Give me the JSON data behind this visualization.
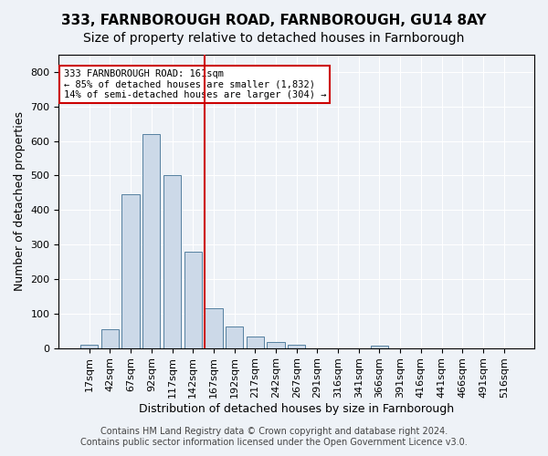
{
  "title1": "333, FARNBOROUGH ROAD, FARNBOROUGH, GU14 8AY",
  "title2": "Size of property relative to detached houses in Farnborough",
  "xlabel": "Distribution of detached houses by size in Farnborough",
  "ylabel": "Number of detached properties",
  "categories": [
    "17sqm",
    "42sqm",
    "67sqm",
    "92sqm",
    "117sqm",
    "142sqm",
    "167sqm",
    "192sqm",
    "217sqm",
    "242sqm",
    "267sqm",
    "291sqm",
    "316sqm",
    "341sqm",
    "366sqm",
    "391sqm",
    "416sqm",
    "441sqm",
    "466sqm",
    "491sqm",
    "516sqm"
  ],
  "values": [
    10,
    55,
    445,
    620,
    500,
    280,
    115,
    62,
    32,
    17,
    9,
    0,
    0,
    0,
    7,
    0,
    0,
    0,
    0,
    0,
    0
  ],
  "bar_color": "#ccd9e8",
  "bar_edge_color": "#5580a0",
  "vline_x": 6,
  "vline_color": "#cc0000",
  "annotation_line1": "333 FARNBOROUGH ROAD: 161sqm",
  "annotation_line2": "← 85% of detached houses are smaller (1,832)",
  "annotation_line3": "14% of semi-detached houses are larger (304) →",
  "annotation_box_color": "#ffffff",
  "annotation_box_edge_color": "#cc0000",
  "footer1": "Contains HM Land Registry data © Crown copyright and database right 2024.",
  "footer2": "Contains public sector information licensed under the Open Government Licence v3.0.",
  "ylim": [
    0,
    850
  ],
  "yticks": [
    0,
    100,
    200,
    300,
    400,
    500,
    600,
    700,
    800
  ],
  "background_color": "#eef2f7",
  "plot_bg_color": "#eef2f7",
  "title1_fontsize": 11,
  "title2_fontsize": 10,
  "axis_label_fontsize": 9,
  "tick_fontsize": 8,
  "footer_fontsize": 7
}
